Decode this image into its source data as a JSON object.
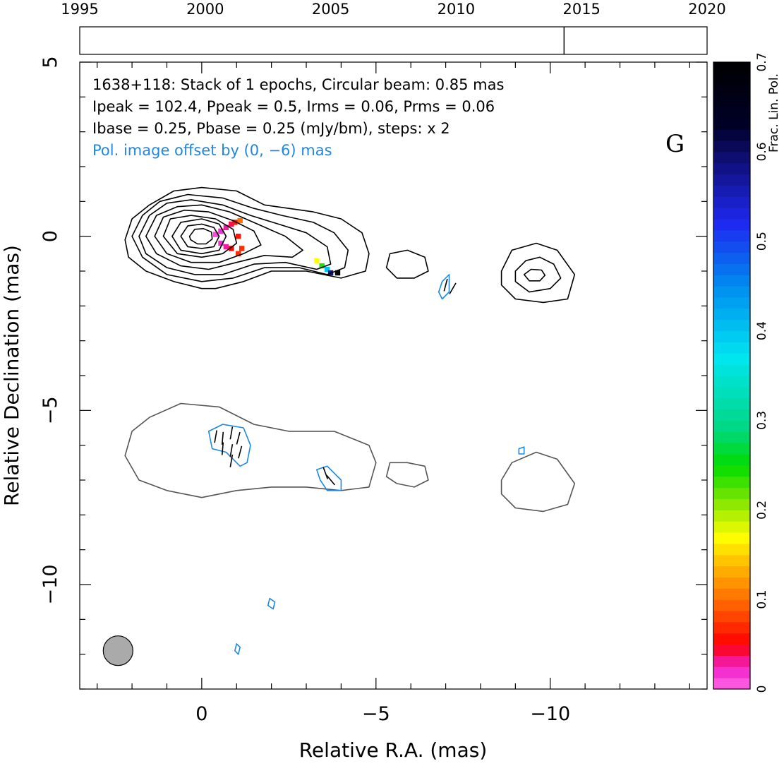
{
  "chart_data": {
    "type": "contour",
    "xlabel": "Relative R.A. (mas)",
    "ylabel": "Relative Declination (mas)",
    "xlim": [
      3.5,
      -14.5
    ],
    "ylim": [
      -13,
      5
    ],
    "x_ticks": [
      0,
      -5,
      -10
    ],
    "y_ticks": [
      5,
      0,
      -5,
      -10
    ],
    "x_tick_labels": [
      "0",
      "−5",
      "−10"
    ],
    "y_tick_labels": [
      "5",
      "0",
      "−5",
      "−10"
    ],
    "annotation_lines": [
      "1638+118: Stack of 1 epochs, Circular beam: 0.85 mas",
      "Ipeak = 102.4, Ppeak = 0.5, Irms = 0.06, Prms = 0.06",
      "Ibase = 0.25, Pbase = 0.25 (mJy/bm), steps: x 2"
    ],
    "pol_note": "Pol. image offset by (0, −6) mas",
    "pol_note_color": "#1e88e5",
    "panel_letter": "G",
    "beam": {
      "x_mas": 2.4,
      "y_mas": -11.9,
      "diameter_mas": 0.85,
      "fill": "#aaaaaa"
    },
    "timeline": {
      "years": [
        1995,
        2000,
        2005,
        2010,
        2015,
        2020
      ],
      "range": [
        1995,
        2020
      ],
      "epochs": [
        2014.3
      ]
    },
    "colorbar": {
      "label": "Frac. Lin. Pol.",
      "range": [
        0,
        0.7
      ],
      "ticks": [
        0,
        0.1,
        0.2,
        0.3,
        0.4,
        0.5,
        0.6,
        0.7
      ],
      "tick_labels": [
        "0",
        "0.1",
        "0.2",
        "0.3",
        "0.4",
        "0.5",
        "0.6",
        "0.7"
      ]
    },
    "stokes_i_contours": [
      {
        "level": 1,
        "points": [
          [
            2.2,
            -0.1
          ],
          [
            2.0,
            0.5
          ],
          [
            1.5,
            0.9
          ],
          [
            0.8,
            1.3
          ],
          [
            0,
            1.4
          ],
          [
            -1,
            1.3
          ],
          [
            -1.8,
            0.9
          ],
          [
            -2.5,
            0.8
          ],
          [
            -3.2,
            0.7
          ],
          [
            -4,
            0.5
          ],
          [
            -4.6,
            0.1
          ],
          [
            -4.8,
            -0.5
          ],
          [
            -4.7,
            -1.0
          ],
          [
            -4,
            -1.2
          ],
          [
            -3,
            -1.0
          ],
          [
            -2,
            -1.0
          ],
          [
            -1.2,
            -1.3
          ],
          [
            -0.4,
            -1.5
          ],
          [
            0,
            -1.5
          ],
          [
            0.8,
            -1.3
          ],
          [
            1.6,
            -1
          ],
          [
            2.1,
            -0.6
          ],
          [
            2.2,
            -0.1
          ]
        ]
      },
      {
        "level": 2,
        "points": [
          [
            2.0,
            0
          ],
          [
            1.7,
            0.6
          ],
          [
            1.2,
            1.0
          ],
          [
            0.4,
            1.2
          ],
          [
            -0.6,
            1.1
          ],
          [
            -1.5,
            0.8
          ],
          [
            -2.3,
            0.6
          ],
          [
            -3.2,
            0.4
          ],
          [
            -3.8,
            0.1
          ],
          [
            -4.2,
            -0.4
          ],
          [
            -4.1,
            -0.9
          ],
          [
            -3.6,
            -1.1
          ],
          [
            -2.8,
            -0.9
          ],
          [
            -1.8,
            -0.9
          ],
          [
            -0.9,
            -1.2
          ],
          [
            0,
            -1.3
          ],
          [
            1,
            -1.1
          ],
          [
            1.7,
            -0.6
          ],
          [
            2.0,
            0
          ]
        ]
      },
      {
        "level": 4,
        "points": [
          [
            1.8,
            0
          ],
          [
            1.5,
            0.6
          ],
          [
            1.0,
            0.95
          ],
          [
            0.3,
            1.05
          ],
          [
            -0.6,
            0.9
          ],
          [
            -1.4,
            0.6
          ],
          [
            -2.2,
            0.35
          ],
          [
            -3.0,
            0.1
          ],
          [
            -3.6,
            -0.3
          ],
          [
            -3.7,
            -0.8
          ],
          [
            -3.3,
            -0.95
          ],
          [
            -2.4,
            -0.75
          ],
          [
            -1.5,
            -0.8
          ],
          [
            -0.6,
            -1.1
          ],
          [
            0.2,
            -1.1
          ],
          [
            1.0,
            -0.9
          ],
          [
            1.6,
            -0.5
          ],
          [
            1.8,
            0
          ]
        ]
      },
      {
        "level": 8,
        "points": [
          [
            1.6,
            0
          ],
          [
            1.3,
            0.6
          ],
          [
            0.7,
            0.85
          ],
          [
            0,
            0.9
          ],
          [
            -0.8,
            0.7
          ],
          [
            -1.6,
            0.35
          ],
          [
            -2.4,
            0
          ],
          [
            -2.9,
            -0.4
          ],
          [
            -2.6,
            -0.6
          ],
          [
            -1.8,
            -0.55
          ],
          [
            -1,
            -0.75
          ],
          [
            -0.2,
            -0.95
          ],
          [
            0.6,
            -0.85
          ],
          [
            1.3,
            -0.5
          ],
          [
            1.6,
            0
          ]
        ]
      },
      {
        "level": 16,
        "points": [
          [
            1.35,
            0
          ],
          [
            1.1,
            0.55
          ],
          [
            0.5,
            0.75
          ],
          [
            -0.2,
            0.7
          ],
          [
            -0.9,
            0.45
          ],
          [
            -1.5,
            0.15
          ],
          [
            -1.7,
            -0.25
          ],
          [
            -1.2,
            -0.5
          ],
          [
            -0.5,
            -0.75
          ],
          [
            0.3,
            -0.75
          ],
          [
            1,
            -0.5
          ],
          [
            1.35,
            0
          ]
        ]
      },
      {
        "level": 32,
        "points": [
          [
            1.1,
            0
          ],
          [
            0.9,
            0.5
          ],
          [
            0.3,
            0.6
          ],
          [
            -0.4,
            0.5
          ],
          [
            -0.9,
            0.2
          ],
          [
            -1.0,
            -0.2
          ],
          [
            -0.6,
            -0.5
          ],
          [
            0,
            -0.6
          ],
          [
            0.7,
            -0.5
          ],
          [
            1.1,
            0
          ]
        ]
      },
      {
        "level": 64,
        "points": [
          [
            0.85,
            0
          ],
          [
            0.6,
            0.4
          ],
          [
            0,
            0.5
          ],
          [
            -0.5,
            0.35
          ],
          [
            -0.7,
            0
          ],
          [
            -0.5,
            -0.4
          ],
          [
            0,
            -0.5
          ],
          [
            0.6,
            -0.4
          ],
          [
            0.85,
            0
          ]
        ]
      },
      {
        "level": 128,
        "points": [
          [
            0.6,
            0
          ],
          [
            0.4,
            0.3
          ],
          [
            0,
            0.35
          ],
          [
            -0.35,
            0.25
          ],
          [
            -0.5,
            0
          ],
          [
            -0.35,
            -0.3
          ],
          [
            0,
            -0.35
          ],
          [
            0.4,
            -0.3
          ],
          [
            0.6,
            0
          ]
        ]
      },
      {
        "level": 256,
        "points": [
          [
            0.35,
            0
          ],
          [
            0.2,
            0.2
          ],
          [
            -0.05,
            0.22
          ],
          [
            -0.28,
            0.12
          ],
          [
            -0.3,
            -0.08
          ],
          [
            -0.12,
            -0.22
          ],
          [
            0.12,
            -0.22
          ],
          [
            0.32,
            -0.1
          ],
          [
            0.35,
            0
          ]
        ]
      },
      {
        "level": 1,
        "points": [
          [
            -5.3,
            -0.9
          ],
          [
            -5.4,
            -0.5
          ],
          [
            -5.9,
            -0.4
          ],
          [
            -6.4,
            -0.6
          ],
          [
            -6.5,
            -1.0
          ],
          [
            -6.1,
            -1.2
          ],
          [
            -5.6,
            -1.2
          ],
          [
            -5.3,
            -0.9
          ]
        ]
      },
      {
        "level": 1,
        "points": [
          [
            -8.6,
            -1.0
          ],
          [
            -8.9,
            -0.4
          ],
          [
            -9.6,
            -0.2
          ],
          [
            -10.2,
            -0.4
          ],
          [
            -10.7,
            -1.1
          ],
          [
            -10.5,
            -1.8
          ],
          [
            -9.8,
            -1.9
          ],
          [
            -9.0,
            -1.8
          ],
          [
            -8.6,
            -1.4
          ],
          [
            -8.6,
            -1.0
          ]
        ]
      },
      {
        "level": 2,
        "points": [
          [
            -9.0,
            -1.0
          ],
          [
            -9.3,
            -0.7
          ],
          [
            -9.7,
            -0.6
          ],
          [
            -10.1,
            -0.8
          ],
          [
            -10.3,
            -1.2
          ],
          [
            -10.0,
            -1.5
          ],
          [
            -9.4,
            -1.6
          ],
          [
            -9.0,
            -1.3
          ],
          [
            -9.0,
            -1.0
          ]
        ]
      },
      {
        "level": 4,
        "points": [
          [
            -9.25,
            -1.1
          ],
          [
            -9.45,
            -0.95
          ],
          [
            -9.75,
            -0.97
          ],
          [
            -9.85,
            -1.12
          ],
          [
            -9.7,
            -1.28
          ],
          [
            -9.4,
            -1.28
          ],
          [
            -9.25,
            -1.1
          ]
        ]
      }
    ],
    "pol_offset_stokes_i_contour": [
      {
        "points": [
          [
            2.2,
            -6.3
          ],
          [
            2.0,
            -5.6
          ],
          [
            1.5,
            -5.2
          ],
          [
            0.6,
            -4.8
          ],
          [
            -0.5,
            -4.9
          ],
          [
            -1.5,
            -5.4
          ],
          [
            -2.5,
            -5.6
          ],
          [
            -3.8,
            -5.6
          ],
          [
            -4.8,
            -6.0
          ],
          [
            -5.0,
            -6.5
          ],
          [
            -4.8,
            -7.2
          ],
          [
            -4.0,
            -7.3
          ],
          [
            -3.0,
            -7.2
          ],
          [
            -2.0,
            -7.2
          ],
          [
            -1.0,
            -7.3
          ],
          [
            0,
            -7.5
          ],
          [
            1.0,
            -7.3
          ],
          [
            1.8,
            -7.0
          ],
          [
            2.2,
            -6.3
          ]
        ]
      },
      {
        "points": [
          [
            -5.3,
            -6.9
          ],
          [
            -5.4,
            -6.5
          ],
          [
            -5.9,
            -6.5
          ],
          [
            -6.4,
            -6.6
          ],
          [
            -6.5,
            -7.0
          ],
          [
            -6.1,
            -7.2
          ],
          [
            -5.6,
            -7.1
          ],
          [
            -5.3,
            -6.9
          ]
        ]
      },
      {
        "points": [
          [
            -8.6,
            -7.0
          ],
          [
            -8.9,
            -6.5
          ],
          [
            -9.6,
            -6.2
          ],
          [
            -10.2,
            -6.4
          ],
          [
            -10.7,
            -7.1
          ],
          [
            -10.5,
            -7.7
          ],
          [
            -9.8,
            -7.9
          ],
          [
            -9.0,
            -7.8
          ],
          [
            -8.6,
            -7.4
          ],
          [
            -8.6,
            -7.0
          ]
        ]
      }
    ],
    "pol_intensity_contours": [
      {
        "points": [
          [
            -0.2,
            -5.6
          ],
          [
            -0.6,
            -5.4
          ],
          [
            -1.2,
            -5.5
          ],
          [
            -1.4,
            -6.0
          ],
          [
            -1.3,
            -6.5
          ],
          [
            -1.1,
            -6.6
          ],
          [
            -0.7,
            -6.2
          ],
          [
            -0.3,
            -6.1
          ],
          [
            -0.2,
            -5.6
          ]
        ]
      },
      {
        "points": [
          [
            -3.3,
            -6.7
          ],
          [
            -3.6,
            -6.6
          ],
          [
            -4.0,
            -7.0
          ],
          [
            -4.0,
            -7.3
          ],
          [
            -3.6,
            -7.3
          ],
          [
            -3.4,
            -7.0
          ],
          [
            -3.3,
            -6.7
          ]
        ]
      },
      {
        "points": [
          [
            -6.9,
            -1.3
          ],
          [
            -7.1,
            -1.1
          ],
          [
            -7.1,
            -1.6
          ],
          [
            -6.9,
            -1.8
          ],
          [
            -6.8,
            -1.6
          ],
          [
            -6.9,
            -1.3
          ]
        ]
      },
      {
        "points": [
          [
            -9.1,
            -6.1
          ],
          [
            -9.25,
            -6.05
          ],
          [
            -9.25,
            -6.25
          ],
          [
            -9.1,
            -6.25
          ],
          [
            -9.1,
            -6.1
          ]
        ]
      },
      {
        "points": [
          [
            -1.95,
            -10.4
          ],
          [
            -2.1,
            -10.5
          ],
          [
            -2.05,
            -10.7
          ],
          [
            -1.9,
            -10.6
          ],
          [
            -1.95,
            -10.4
          ]
        ]
      },
      {
        "points": [
          [
            -1.0,
            -11.7
          ],
          [
            -1.1,
            -11.8
          ],
          [
            -1.05,
            -12.0
          ],
          [
            -0.95,
            -11.9
          ],
          [
            -1.0,
            -11.7
          ]
        ]
      }
    ],
    "evpa_ticks": [
      {
        "x": -0.4,
        "y": -5.75,
        "angle": 80
      },
      {
        "x": -0.6,
        "y": -5.8,
        "angle": 85
      },
      {
        "x": -0.85,
        "y": -5.65,
        "angle": 80
      },
      {
        "x": -1.05,
        "y": -5.8,
        "angle": 75
      },
      {
        "x": -0.6,
        "y": -6.1,
        "angle": 85
      },
      {
        "x": -0.85,
        "y": -6.15,
        "angle": 80
      },
      {
        "x": -1.1,
        "y": -6.2,
        "angle": 75
      },
      {
        "x": -0.85,
        "y": -6.45,
        "angle": 80
      },
      {
        "x": -3.55,
        "y": -6.8,
        "angle": 110
      },
      {
        "x": -3.7,
        "y": -7.0,
        "angle": 130
      },
      {
        "x": -7.0,
        "y": -1.4,
        "angle": 75
      },
      {
        "x": -7.2,
        "y": -1.5,
        "angle": 60
      }
    ],
    "frac_pol_pixels": [
      {
        "x": -0.4,
        "y": 0.05,
        "value": 0.01
      },
      {
        "x": -0.55,
        "y": 0.15,
        "value": 0.02
      },
      {
        "x": -0.55,
        "y": -0.2,
        "value": 0.02
      },
      {
        "x": -0.7,
        "y": 0.25,
        "value": 0.03
      },
      {
        "x": -0.7,
        "y": -0.3,
        "value": 0.03
      },
      {
        "x": -0.85,
        "y": 0.35,
        "value": 0.04
      },
      {
        "x": -0.85,
        "y": -0.35,
        "value": 0.05
      },
      {
        "x": -0.95,
        "y": 0.4,
        "value": 0.06
      },
      {
        "x": -1.05,
        "y": 0.0,
        "value": 0.06
      },
      {
        "x": -1.05,
        "y": -0.5,
        "value": 0.07
      },
      {
        "x": -1.1,
        "y": 0.45,
        "value": 0.1
      },
      {
        "x": -1.15,
        "y": -0.35,
        "value": 0.07
      },
      {
        "x": -3.3,
        "y": -0.7,
        "value": 0.17
      },
      {
        "x": -3.45,
        "y": -0.85,
        "value": 0.24
      },
      {
        "x": -3.6,
        "y": -0.95,
        "value": 0.4
      },
      {
        "x": -3.7,
        "y": -1.05,
        "value": 0.58
      },
      {
        "x": -3.9,
        "y": -1.05,
        "value": 0.7
      }
    ]
  }
}
